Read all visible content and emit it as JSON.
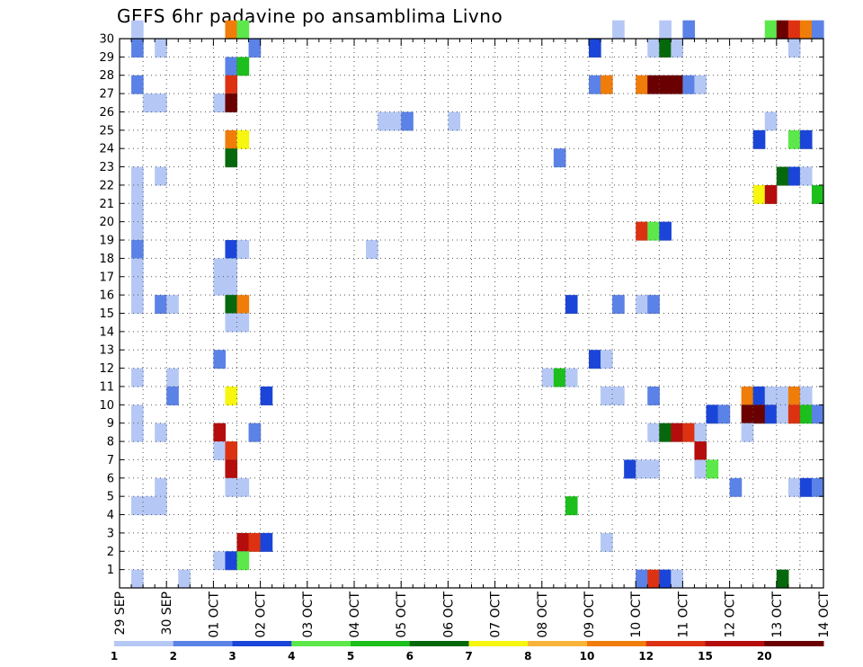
{
  "chart_data": {
    "type": "heatmap",
    "title": "GEFS 6hr padavine po ansamblima Livno",
    "xlabel": "",
    "ylabel": "",
    "y_ticks": [
      1,
      2,
      3,
      4,
      5,
      6,
      7,
      8,
      9,
      10,
      11,
      12,
      13,
      14,
      15,
      16,
      17,
      18,
      19,
      20,
      21,
      22,
      23,
      24,
      25,
      26,
      27,
      28,
      29,
      30
    ],
    "ylim": [
      0,
      30
    ],
    "x_tick_labels": [
      "29 SEP",
      "30 SEP",
      "01 OCT",
      "02 OCT",
      "03 OCT",
      "04 OCT",
      "05 OCT",
      "06 OCT",
      "07 OCT",
      "08 OCT",
      "09 OCT",
      "10 OCT",
      "11 OCT",
      "12 OCT",
      "13 OCT",
      "14 OCT"
    ],
    "x_unit": "6-hour step",
    "steps_per_day": 4,
    "n_steps": 60,
    "grid": true,
    "legend": {
      "placement": "bottom",
      "levels": [
        "1",
        "2",
        "3",
        "4",
        "5",
        "6",
        "7",
        "8",
        "10",
        "12",
        "15",
        "20"
      ],
      "colors": [
        "#b5c8f5",
        "#5b82e6",
        "#1a45d8",
        "#5ce84a",
        "#1cbf1c",
        "#06680c",
        "#f6f60f",
        "#f8b43a",
        "#f07d0a",
        "#dd3212",
        "#b50c0c",
        "#6a0000"
      ]
    },
    "cells": [
      [
        1,
        30,
        1
      ],
      [
        9,
        30,
        9
      ],
      [
        10,
        30,
        4
      ],
      [
        42,
        30,
        1
      ],
      [
        46,
        30,
        1
      ],
      [
        48,
        30,
        2
      ],
      [
        55,
        30,
        4
      ],
      [
        56,
        30,
        12
      ],
      [
        57,
        30,
        10
      ],
      [
        58,
        30,
        9
      ],
      [
        59,
        30,
        2
      ],
      [
        1,
        29,
        2
      ],
      [
        3,
        29,
        1
      ],
      [
        11,
        29,
        2
      ],
      [
        40,
        29,
        3
      ],
      [
        45,
        29,
        1
      ],
      [
        46,
        29,
        6
      ],
      [
        47,
        29,
        1
      ],
      [
        57,
        29,
        1
      ],
      [
        9,
        28,
        2
      ],
      [
        10,
        28,
        5
      ],
      [
        1,
        27,
        2
      ],
      [
        9,
        27,
        10
      ],
      [
        40,
        27,
        2
      ],
      [
        41,
        27,
        9
      ],
      [
        44,
        27,
        9
      ],
      [
        45,
        27,
        12
      ],
      [
        46,
        27,
        12
      ],
      [
        47,
        27,
        12
      ],
      [
        48,
        27,
        2
      ],
      [
        49,
        27,
        1
      ],
      [
        2,
        26,
        1
      ],
      [
        3,
        26,
        1
      ],
      [
        8,
        26,
        1
      ],
      [
        9,
        26,
        12
      ],
      [
        22,
        25,
        1
      ],
      [
        23,
        25,
        1
      ],
      [
        24,
        25,
        2
      ],
      [
        28,
        25,
        1
      ],
      [
        55,
        25,
        1
      ],
      [
        9,
        24,
        9
      ],
      [
        10,
        24,
        7
      ],
      [
        54,
        24,
        3
      ],
      [
        57,
        24,
        4
      ],
      [
        58,
        24,
        3
      ],
      [
        9,
        23,
        6
      ],
      [
        37,
        23,
        2
      ],
      [
        1,
        22,
        1
      ],
      [
        3,
        22,
        1
      ],
      [
        56,
        22,
        6
      ],
      [
        57,
        22,
        3
      ],
      [
        58,
        22,
        1
      ],
      [
        1,
        21,
        1
      ],
      [
        54,
        21,
        7
      ],
      [
        55,
        21,
        11
      ],
      [
        59,
        21,
        5
      ],
      [
        1,
        20,
        1
      ],
      [
        1,
        19,
        1
      ],
      [
        44,
        19,
        10
      ],
      [
        45,
        19,
        4
      ],
      [
        46,
        19,
        3
      ],
      [
        1,
        18,
        2
      ],
      [
        9,
        18,
        3
      ],
      [
        10,
        18,
        1
      ],
      [
        21,
        18,
        1
      ],
      [
        1,
        17,
        1
      ],
      [
        8,
        17,
        1
      ],
      [
        9,
        17,
        1
      ],
      [
        1,
        16,
        1
      ],
      [
        8,
        16,
        1
      ],
      [
        9,
        16,
        1
      ],
      [
        1,
        15,
        1
      ],
      [
        3,
        15,
        2
      ],
      [
        4,
        15,
        1
      ],
      [
        9,
        15,
        6
      ],
      [
        10,
        15,
        9
      ],
      [
        38,
        15,
        3
      ],
      [
        42,
        15,
        2
      ],
      [
        44,
        15,
        1
      ],
      [
        45,
        15,
        2
      ],
      [
        9,
        14,
        1
      ],
      [
        10,
        14,
        1
      ],
      [
        8,
        12,
        2
      ],
      [
        40,
        12,
        3
      ],
      [
        41,
        12,
        1
      ],
      [
        1,
        11,
        1
      ],
      [
        4,
        11,
        1
      ],
      [
        36,
        11,
        1
      ],
      [
        37,
        11,
        5
      ],
      [
        38,
        11,
        1
      ],
      [
        4,
        10,
        2
      ],
      [
        9,
        10,
        7
      ],
      [
        12,
        10,
        3
      ],
      [
        41,
        10,
        1
      ],
      [
        42,
        10,
        1
      ],
      [
        45,
        10,
        2
      ],
      [
        53,
        10,
        9
      ],
      [
        54,
        10,
        3
      ],
      [
        55,
        10,
        1
      ],
      [
        56,
        10,
        1
      ],
      [
        57,
        10,
        9
      ],
      [
        58,
        10,
        1
      ],
      [
        1,
        9,
        1
      ],
      [
        50,
        9,
        3
      ],
      [
        51,
        9,
        2
      ],
      [
        53,
        9,
        12
      ],
      [
        54,
        9,
        12
      ],
      [
        55,
        9,
        3
      ],
      [
        56,
        9,
        1
      ],
      [
        57,
        9,
        10
      ],
      [
        58,
        9,
        5
      ],
      [
        59,
        9,
        2
      ],
      [
        1,
        8,
        1
      ],
      [
        3,
        8,
        1
      ],
      [
        8,
        8,
        11
      ],
      [
        11,
        8,
        2
      ],
      [
        45,
        8,
        1
      ],
      [
        46,
        8,
        6
      ],
      [
        47,
        8,
        11
      ],
      [
        48,
        8,
        10
      ],
      [
        49,
        8,
        1
      ],
      [
        53,
        8,
        1
      ],
      [
        8,
        7,
        1
      ],
      [
        9,
        7,
        10
      ],
      [
        49,
        7,
        11
      ],
      [
        9,
        6,
        11
      ],
      [
        43,
        6,
        3
      ],
      [
        44,
        6,
        1
      ],
      [
        45,
        6,
        1
      ],
      [
        49,
        6,
        1
      ],
      [
        50,
        6,
        4
      ],
      [
        3,
        5,
        1
      ],
      [
        9,
        5,
        1
      ],
      [
        10,
        5,
        1
      ],
      [
        52,
        5,
        2
      ],
      [
        57,
        5,
        1
      ],
      [
        58,
        5,
        3
      ],
      [
        59,
        5,
        2
      ],
      [
        1,
        4,
        1
      ],
      [
        2,
        4,
        1
      ],
      [
        3,
        4,
        1
      ],
      [
        38,
        4,
        5
      ],
      [
        10,
        2,
        11
      ],
      [
        11,
        2,
        10
      ],
      [
        12,
        2,
        3
      ],
      [
        41,
        2,
        1
      ],
      [
        8,
        1,
        1
      ],
      [
        9,
        1,
        3
      ],
      [
        10,
        1,
        4
      ],
      [
        1,
        0,
        1
      ],
      [
        5,
        0,
        1
      ],
      [
        44,
        0,
        2
      ],
      [
        45,
        0,
        10
      ],
      [
        46,
        0,
        3
      ],
      [
        47,
        0,
        1
      ],
      [
        56,
        0,
        6
      ]
    ]
  }
}
